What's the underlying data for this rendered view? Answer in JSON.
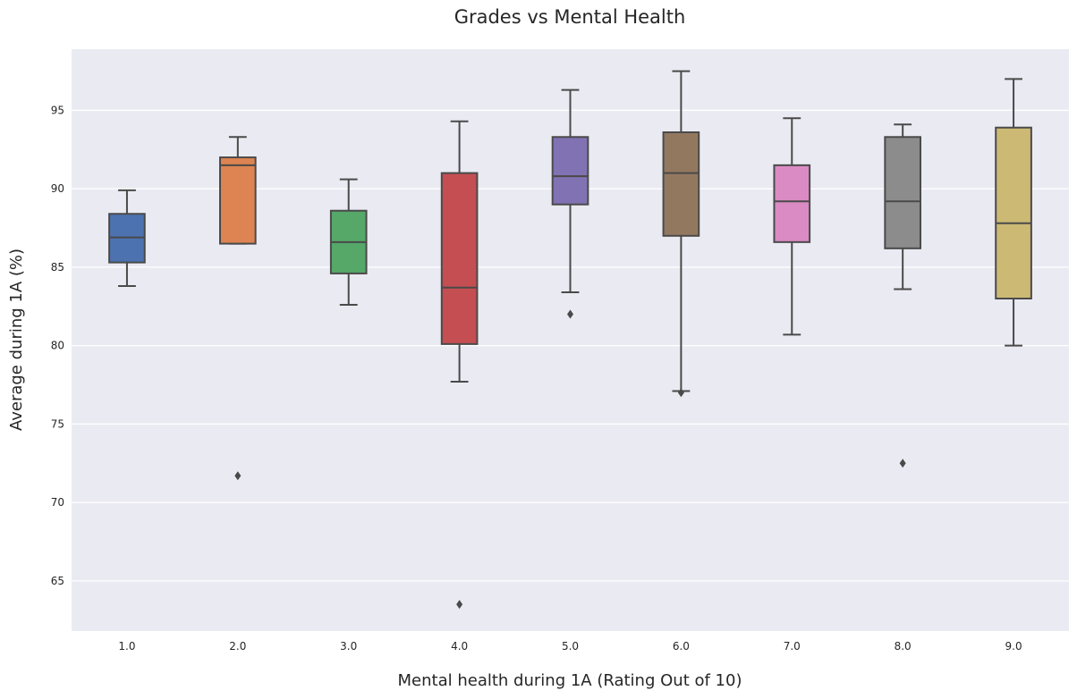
{
  "chart_data": {
    "type": "boxplot",
    "title": "Grades vs Mental Health",
    "xlabel": "Mental health during 1A (Rating Out of 10)",
    "ylabel": "Average during 1A (%)",
    "ylim": [
      61.8,
      98.9
    ],
    "yticks": [
      65,
      70,
      75,
      80,
      85,
      90,
      95
    ],
    "grid": true,
    "categories": [
      "1.0",
      "2.0",
      "3.0",
      "4.0",
      "5.0",
      "6.0",
      "7.0",
      "8.0",
      "9.0"
    ],
    "series": [
      {
        "category": "1.0",
        "color": "#4c72b0",
        "whisker_low": 83.8,
        "q1": 85.3,
        "median": 86.9,
        "q3": 88.4,
        "whisker_high": 89.9,
        "outliers": []
      },
      {
        "category": "2.0",
        "color": "#dd8452",
        "whisker_low": 86.5,
        "q1": 86.5,
        "median": 91.5,
        "q3": 92.0,
        "whisker_high": 93.3,
        "outliers": [
          71.7
        ]
      },
      {
        "category": "3.0",
        "color": "#55a868",
        "whisker_low": 82.6,
        "q1": 84.6,
        "median": 86.6,
        "q3": 88.6,
        "whisker_high": 90.6,
        "outliers": []
      },
      {
        "category": "4.0",
        "color": "#c44e52",
        "whisker_low": 77.7,
        "q1": 80.1,
        "median": 83.7,
        "q3": 91.0,
        "whisker_high": 94.3,
        "outliers": [
          63.5
        ]
      },
      {
        "category": "5.0",
        "color": "#8172b3",
        "whisker_low": 83.4,
        "q1": 89.0,
        "median": 90.8,
        "q3": 93.3,
        "whisker_high": 96.3,
        "outliers": [
          82.0
        ]
      },
      {
        "category": "6.0",
        "color": "#937860",
        "whisker_low": 77.1,
        "q1": 87.0,
        "median": 91.0,
        "q3": 93.6,
        "whisker_high": 97.5,
        "outliers": [
          77.0
        ]
      },
      {
        "category": "7.0",
        "color": "#da8bc3",
        "whisker_low": 80.7,
        "q1": 86.6,
        "median": 89.2,
        "q3": 91.5,
        "whisker_high": 94.5,
        "outliers": []
      },
      {
        "category": "8.0",
        "color": "#8c8c8c",
        "whisker_low": 83.6,
        "q1": 86.2,
        "median": 89.2,
        "q3": 93.3,
        "whisker_high": 94.1,
        "outliers": [
          72.5
        ]
      },
      {
        "category": "9.0",
        "color": "#ccb974",
        "whisker_low": 80.0,
        "q1": 83.0,
        "median": 87.8,
        "q3": 93.9,
        "whisker_high": 97.0,
        "outliers": []
      }
    ],
    "colors": {
      "background": "#eaeaf2",
      "grid": "#ffffff",
      "line": "#4a4a4a"
    }
  }
}
